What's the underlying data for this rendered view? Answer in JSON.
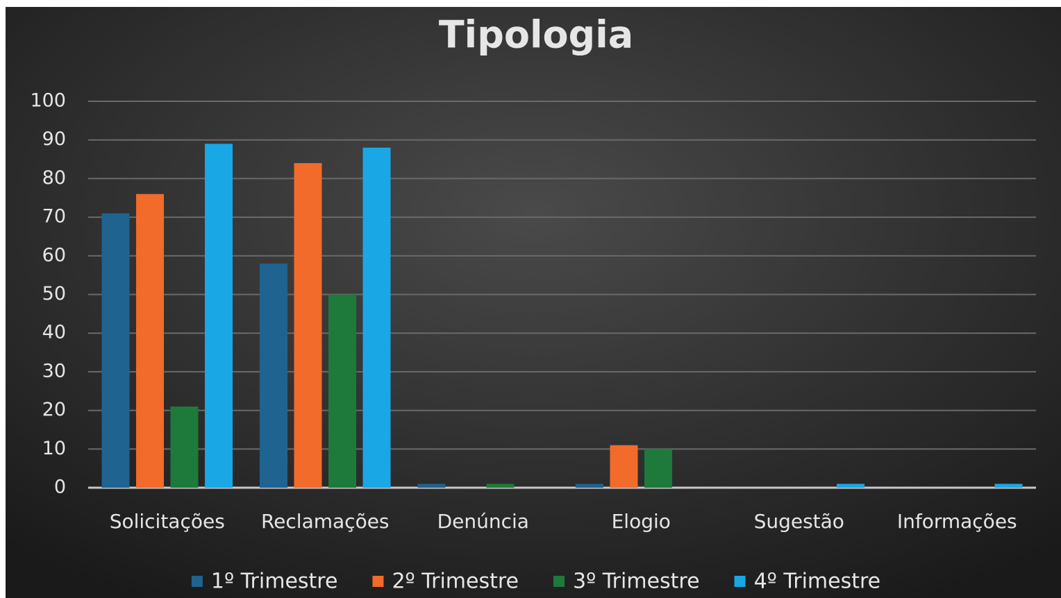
{
  "chart_data": {
    "type": "bar",
    "title": "Tipologia",
    "categories": [
      "Solicitações",
      "Reclamações",
      "Denúncia",
      "Elogio",
      "Sugestão",
      "Informações"
    ],
    "series": [
      {
        "name": "1º Trimestre",
        "color": "#1f6391",
        "values": [
          71,
          58,
          1,
          1,
          0,
          0
        ]
      },
      {
        "name": "2º Trimestre",
        "color": "#f26b2a",
        "values": [
          76,
          84,
          0,
          11,
          0,
          0
        ]
      },
      {
        "name": "3º Trimestre",
        "color": "#1e7a3a",
        "values": [
          21,
          50,
          1,
          10,
          0,
          0
        ]
      },
      {
        "name": "4º Trimestre",
        "color": "#1aa7e6",
        "values": [
          89,
          88,
          0,
          0,
          1,
          1
        ]
      }
    ],
    "ylim": [
      0,
      100
    ],
    "yticks": [
      0,
      10,
      20,
      30,
      40,
      50,
      60,
      70,
      80,
      90,
      100
    ],
    "grid": true,
    "legend": "bottom"
  }
}
